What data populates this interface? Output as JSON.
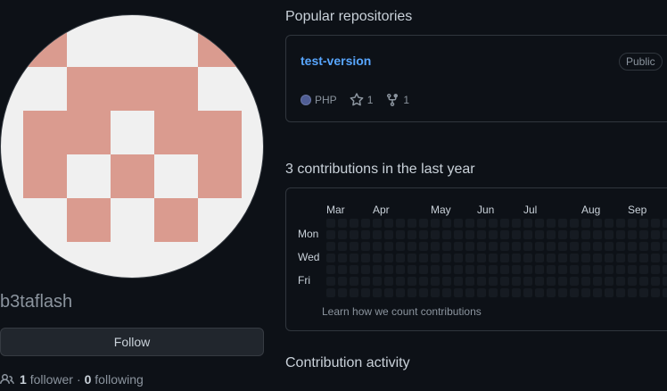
{
  "profile": {
    "username": "b3taflash",
    "follow_label": "Follow",
    "followers_count": "1",
    "followers_label": "follower",
    "separator": "·",
    "following_count": "0",
    "following_label": "following",
    "avatar_colors": {
      "background": "#f0f0f0",
      "foreground": "#da9b8f"
    }
  },
  "popular": {
    "title": "Popular repositories",
    "repos": [
      {
        "name": "test-version",
        "visibility": "Public",
        "language": "PHP",
        "language_color": "#4f5d95",
        "stars": "1",
        "forks": "1"
      }
    ]
  },
  "contributions": {
    "title": "3 contributions in the last year",
    "months": [
      "Mar",
      "Apr",
      "May",
      "Jun",
      "Jul",
      "Aug",
      "Sep"
    ],
    "days": [
      "Mon",
      "Wed",
      "Fri"
    ],
    "learn_link": "Learn how we count contributions",
    "empty_color": "#161b22"
  },
  "activity": {
    "title": "Contribution activity"
  }
}
